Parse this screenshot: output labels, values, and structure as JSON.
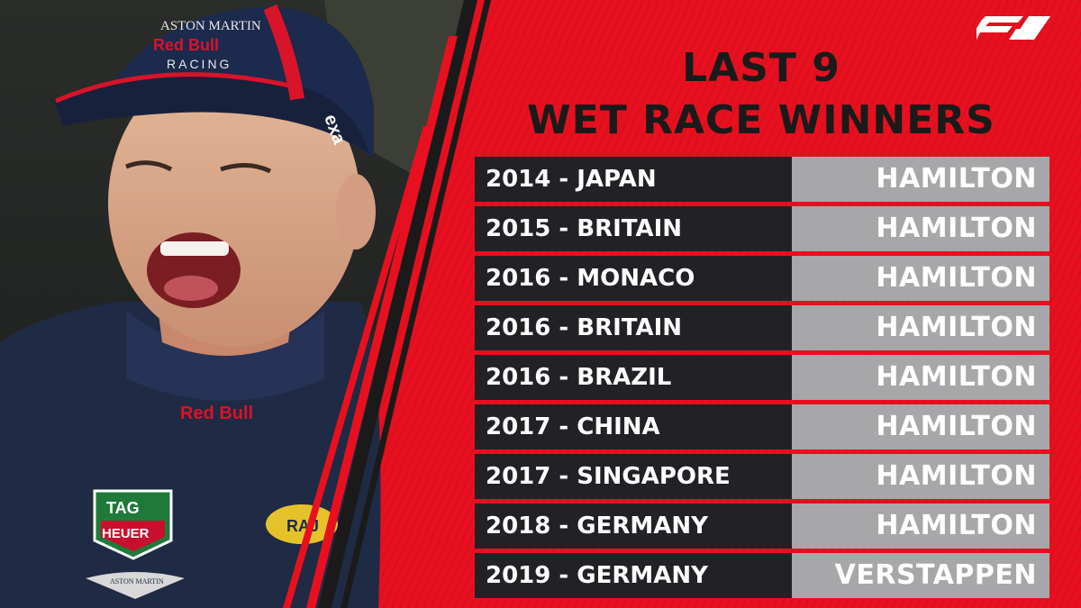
{
  "header": {
    "logo_text": "F1",
    "title_line1": "LAST 9",
    "title_line2": "WET RACE WINNERS"
  },
  "photo": {
    "description": "Max Verstappen celebrating",
    "cap_brand_line1": "ASTON MARTIN",
    "cap_brand_line2": "Red Bull",
    "cap_brand_line3": "RACING",
    "cap_side": "exa",
    "collar_logo": "Red Bull",
    "badge_tag_line1": "TAG",
    "badge_tag_line2": "HEUER",
    "badge_raj": "RAJ",
    "chest_logo": "ASTON MARTIN"
  },
  "colors": {
    "brand_red": "#e8101f",
    "race_cell": "#222226",
    "winner_cell": "#a7a7a9",
    "title_text": "#1a1a1a"
  },
  "races": [
    {
      "race": "2014 - JAPAN",
      "winner": "HAMILTON"
    },
    {
      "race": "2015 - BRITAIN",
      "winner": "HAMILTON"
    },
    {
      "race": "2016 - MONACO",
      "winner": "HAMILTON"
    },
    {
      "race": "2016 - BRITAIN",
      "winner": "HAMILTON"
    },
    {
      "race": "2016 - BRAZIL",
      "winner": "HAMILTON"
    },
    {
      "race": "2017 - CHINA",
      "winner": "HAMILTON"
    },
    {
      "race": "2017 - SINGAPORE",
      "winner": "HAMILTON"
    },
    {
      "race": "2018 - GERMANY",
      "winner": "HAMILTON"
    },
    {
      "race": "2019 - GERMANY",
      "winner": "VERSTAPPEN"
    }
  ]
}
